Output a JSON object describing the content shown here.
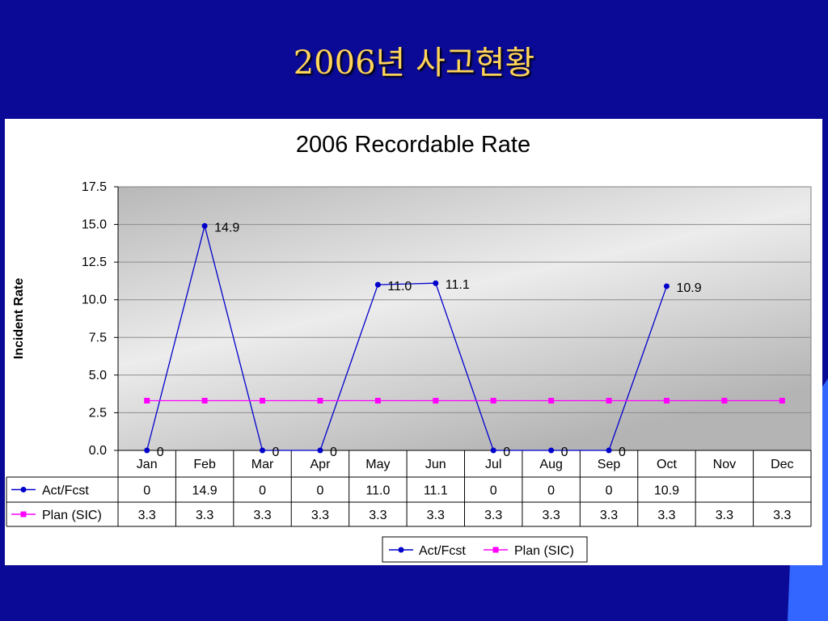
{
  "slide": {
    "title": "2006년 사고현황"
  },
  "colors": {
    "background": "#0a0a96",
    "title": "#ffd45a",
    "act_series": "#0000cc",
    "plan_series": "#ff00ff"
  },
  "chart_data": {
    "type": "line",
    "title": "2006 Recordable Rate",
    "xlabel": "",
    "ylabel": "Incident Rate",
    "ylim": [
      0,
      17.5
    ],
    "yticks": [
      "0.0",
      "2.5",
      "5.0",
      "7.5",
      "10.0",
      "12.5",
      "15.0",
      "17.5"
    ],
    "categories": [
      "Jan",
      "Feb",
      "Mar",
      "Apr",
      "May",
      "Jun",
      "Jul",
      "Aug",
      "Sep",
      "Oct",
      "Nov",
      "Dec"
    ],
    "series": [
      {
        "name": "Act/Fcst",
        "values": [
          0,
          14.9,
          0,
          0,
          11.0,
          11.1,
          0,
          0,
          0,
          10.9,
          null,
          null
        ],
        "labels": [
          "0",
          "14.9",
          "0",
          "0",
          "11.0",
          "11.1",
          "0",
          "0",
          "0",
          "10.9",
          "",
          ""
        ]
      },
      {
        "name": "Plan (SIC)",
        "values": [
          3.3,
          3.3,
          3.3,
          3.3,
          3.3,
          3.3,
          3.3,
          3.3,
          3.3,
          3.3,
          3.3,
          3.3
        ],
        "labels": [
          "3.3",
          "3.3",
          "3.3",
          "3.3",
          "3.3",
          "3.3",
          "3.3",
          "3.3",
          "3.3",
          "3.3",
          "3.3",
          "3.3"
        ]
      }
    ],
    "grid": true,
    "legend": "bottom-right",
    "data_table": true
  }
}
